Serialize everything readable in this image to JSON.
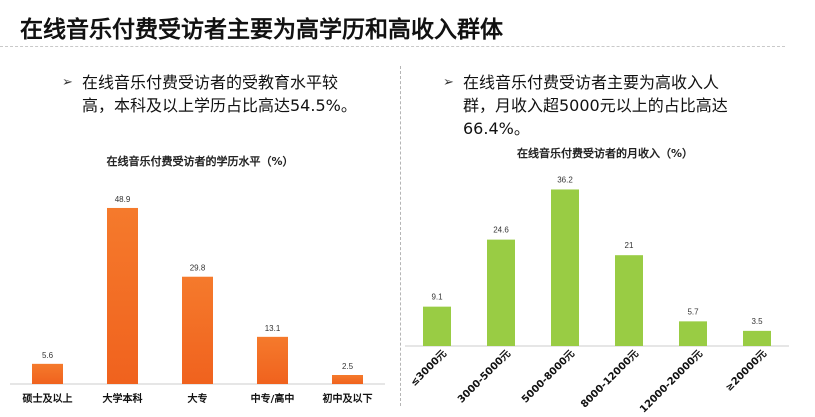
{
  "page": {
    "title": "在线音乐付费受访者主要为高学历和高收入群体"
  },
  "left_panel": {
    "bullet_arrow": "➢",
    "bullet_text": "在线音乐付费受访者的受教育水平较高，本科及以上学历占比高达54.5%。"
  },
  "right_panel": {
    "bullet_arrow": "➢",
    "bullet_text": "在线音乐付费受访者主要为高收入人群，月收入超5000元以上的占比高达66.4%。"
  },
  "chart_data": [
    {
      "type": "bar",
      "title": "在线音乐付费受访者的学历水平（%）",
      "categories": [
        "硕士及以上",
        "大学本科",
        "大专",
        "中专/高中",
        "初中及以下"
      ],
      "values": [
        5.6,
        48.9,
        29.8,
        13.1,
        2.5
      ],
      "ylim": [
        0,
        50
      ],
      "bar_color": "#f0621e",
      "grid": false,
      "legend": "none"
    },
    {
      "type": "bar",
      "title": "在线音乐付费受访者的月收入（%）",
      "categories": [
        "≤3000元",
        "3000-5000元",
        "5000-8000元",
        "8000-12000元",
        "12000-20000元",
        "≥20000元"
      ],
      "values": [
        9.1,
        24.6,
        36.2,
        21,
        5.7,
        3.5
      ],
      "ylim": [
        0,
        37
      ],
      "bar_color": "#99cc44",
      "grid": false,
      "legend": "none"
    }
  ]
}
